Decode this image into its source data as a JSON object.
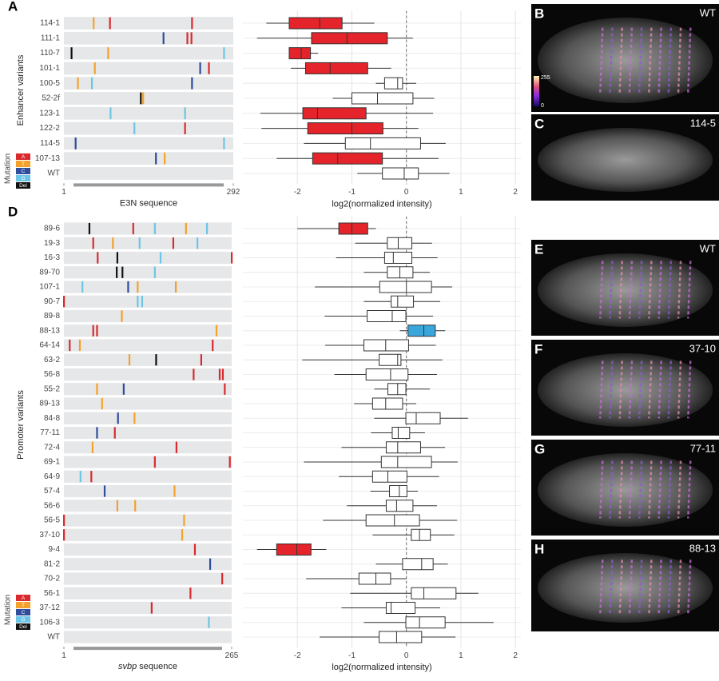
{
  "chart_data": [
    {
      "type": "track",
      "panel": "A",
      "ylabel": "Enhancer variants",
      "xlabel": "E3N sequence",
      "xlim": [
        1,
        292
      ],
      "xticks": [
        1,
        292
      ],
      "categories": [
        "114-1",
        "111-1",
        "110-7",
        "101-1",
        "100-5",
        "52-2f",
        "123-1",
        "122-2",
        "114-5",
        "107-13",
        "WT"
      ],
      "mutations": [
        [
          {
            "pos": 52,
            "base": "T"
          },
          {
            "pos": 80,
            "base": "A"
          },
          {
            "pos": 221,
            "base": "A"
          }
        ],
        [
          {
            "pos": 172,
            "base": "C"
          },
          {
            "pos": 213,
            "base": "A"
          },
          {
            "pos": 220,
            "base": "A"
          }
        ],
        [
          {
            "pos": 14,
            "base": "Del"
          },
          {
            "pos": 77,
            "base": "T"
          },
          {
            "pos": 276,
            "base": "G"
          }
        ],
        [
          {
            "pos": 54,
            "base": "T"
          },
          {
            "pos": 235,
            "base": "C"
          },
          {
            "pos": 250,
            "base": "A"
          }
        ],
        [
          {
            "pos": 25,
            "base": "T"
          },
          {
            "pos": 49,
            "base": "G"
          },
          {
            "pos": 221,
            "base": "C"
          }
        ],
        [
          {
            "pos": 133,
            "base": "Del"
          },
          {
            "pos": 137,
            "base": "T"
          }
        ],
        [
          {
            "pos": 81,
            "base": "G"
          },
          {
            "pos": 209,
            "base": "G"
          }
        ],
        [
          {
            "pos": 122,
            "base": "G"
          },
          {
            "pos": 209,
            "base": "A"
          }
        ],
        [
          {
            "pos": 21,
            "base": "C"
          },
          {
            "pos": 276,
            "base": "G"
          }
        ],
        [
          {
            "pos": 159,
            "base": "C"
          },
          {
            "pos": 174,
            "base": "T"
          }
        ],
        []
      ],
      "legend_title": "Mutation",
      "legend": [
        {
          "name": "A",
          "color": "#d92a2e"
        },
        {
          "name": "T",
          "color": "#f4a12c"
        },
        {
          "name": "C",
          "color": "#2f4d9c"
        },
        {
          "name": "G",
          "color": "#6cc5e4"
        },
        {
          "name": "Del",
          "color": "#111111"
        }
      ]
    },
    {
      "type": "box",
      "xlabel": "log2(normalized intensity)",
      "xlim": [
        -3,
        2.1
      ],
      "xticks": [
        -2,
        -1,
        0,
        1,
        2
      ],
      "refline": 0,
      "low": [
        -2.57,
        -2.74,
        -2.15,
        -2.12,
        -0.56,
        -1.35,
        -2.68,
        -2.66,
        -1.88,
        -2.38,
        -0.9
      ],
      "q1": [
        -2.15,
        -1.74,
        -2.15,
        -1.85,
        -0.4,
        -1.0,
        -1.9,
        -1.81,
        -1.12,
        -1.72,
        -0.44
      ],
      "median": [
        -1.59,
        -1.09,
        -1.93,
        -1.4,
        -0.16,
        -0.53,
        -1.63,
        -1.0,
        -0.66,
        -1.26,
        -0.04
      ],
      "q3": [
        -1.18,
        -0.35,
        -1.76,
        -0.71,
        -0.07,
        0.12,
        -0.74,
        -0.43,
        0.26,
        -0.44,
        0.22
      ],
      "high": [
        -0.59,
        0.12,
        -1.62,
        -0.28,
        0.18,
        0.51,
        0.49,
        0.22,
        0.72,
        0.59,
        0.79
      ],
      "fills": [
        "#e4232a",
        "#e4232a",
        "#e4232a",
        "#e4232a",
        "#ffffff",
        "#ffffff",
        "#e4232a",
        "#e4232a",
        "#ffffff",
        "#e4232a",
        "#ffffff"
      ]
    },
    {
      "type": "track",
      "panel": "D",
      "ylabel": "Promoter variants",
      "xlabel_gene": "svbp",
      "xlabel": "sequence",
      "xlim": [
        1,
        265
      ],
      "xticks": [
        1,
        265
      ],
      "categories": [
        "89-6",
        "19-3",
        "16-3",
        "89-70",
        "107-1",
        "90-7",
        "89-8",
        "88-13",
        "64-14",
        "63-2",
        "56-8",
        "55-2",
        "89-13",
        "84-8",
        "77-11",
        "72-4",
        "69-1",
        "64-9",
        "57-4",
        "56-6",
        "56-5",
        "37-10",
        "9-4",
        "81-2",
        "70-2",
        "56-1",
        "37-12",
        "106-3",
        "WT"
      ],
      "mutations": [
        [
          {
            "pos": 41,
            "base": "Del"
          },
          {
            "pos": 110,
            "base": "A"
          },
          {
            "pos": 144,
            "base": "G"
          },
          {
            "pos": 193,
            "base": "T"
          },
          {
            "pos": 226,
            "base": "G"
          }
        ],
        [
          {
            "pos": 47,
            "base": "A"
          },
          {
            "pos": 78,
            "base": "T"
          },
          {
            "pos": 120,
            "base": "G"
          },
          {
            "pos": 173,
            "base": "A"
          },
          {
            "pos": 211,
            "base": "G"
          }
        ],
        [
          {
            "pos": 54,
            "base": "A"
          },
          {
            "pos": 85,
            "base": "Del"
          },
          {
            "pos": 153,
            "base": "G"
          },
          {
            "pos": 265,
            "base": "A"
          }
        ],
        [
          {
            "pos": 84,
            "base": "Del"
          },
          {
            "pos": 93,
            "base": "Del"
          },
          {
            "pos": 144,
            "base": "G"
          }
        ],
        [
          {
            "pos": 30,
            "base": "G"
          },
          {
            "pos": 102,
            "base": "C"
          },
          {
            "pos": 117,
            "base": "T"
          },
          {
            "pos": 177,
            "base": "T"
          }
        ],
        [
          {
            "pos": 1,
            "base": "A"
          },
          {
            "pos": 117,
            "base": "G"
          },
          {
            "pos": 124,
            "base": "G"
          }
        ],
        [
          {
            "pos": 92,
            "base": "T"
          }
        ],
        [
          {
            "pos": 47,
            "base": "A"
          },
          {
            "pos": 53,
            "base": "A"
          },
          {
            "pos": 241,
            "base": "T"
          }
        ],
        [
          {
            "pos": 10,
            "base": "A"
          },
          {
            "pos": 26,
            "base": "T"
          },
          {
            "pos": 235,
            "base": "A"
          }
        ],
        [
          {
            "pos": 104,
            "base": "T"
          },
          {
            "pos": 146,
            "base": "Del"
          },
          {
            "pos": 217,
            "base": "A"
          }
        ],
        [
          {
            "pos": 205,
            "base": "A"
          },
          {
            "pos": 246,
            "base": "A"
          },
          {
            "pos": 251,
            "base": "A"
          }
        ],
        [
          {
            "pos": 53,
            "base": "T"
          },
          {
            "pos": 95,
            "base": "C"
          },
          {
            "pos": 254,
            "base": "A"
          }
        ],
        [
          {
            "pos": 61,
            "base": "T"
          }
        ],
        [
          {
            "pos": 86,
            "base": "C"
          },
          {
            "pos": 112,
            "base": "T"
          }
        ],
        [
          {
            "pos": 53,
            "base": "C"
          },
          {
            "pos": 81,
            "base": "A"
          }
        ],
        [
          {
            "pos": 46,
            "base": "T"
          },
          {
            "pos": 178,
            "base": "A"
          }
        ],
        [
          {
            "pos": 144,
            "base": "A"
          },
          {
            "pos": 262,
            "base": "A"
          }
        ],
        [
          {
            "pos": 27,
            "base": "G"
          },
          {
            "pos": 44,
            "base": "A"
          }
        ],
        [
          {
            "pos": 65,
            "base": "C"
          },
          {
            "pos": 175,
            "base": "T"
          }
        ],
        [
          {
            "pos": 85,
            "base": "T"
          },
          {
            "pos": 113,
            "base": "T"
          }
        ],
        [
          {
            "pos": 1,
            "base": "A"
          },
          {
            "pos": 190,
            "base": "T"
          }
        ],
        [
          {
            "pos": 1,
            "base": "A"
          },
          {
            "pos": 187,
            "base": "T"
          }
        ],
        [
          {
            "pos": 207,
            "base": "A"
          }
        ],
        [
          {
            "pos": 231,
            "base": "C"
          }
        ],
        [
          {
            "pos": 250,
            "base": "A"
          }
        ],
        [
          {
            "pos": 200,
            "base": "A"
          }
        ],
        [
          {
            "pos": 139,
            "base": "A"
          }
        ],
        [
          {
            "pos": 229,
            "base": "G"
          }
        ],
        []
      ],
      "legend_title": "Mutation",
      "legend": [
        {
          "name": "A",
          "color": "#d92a2e"
        },
        {
          "name": "T",
          "color": "#f4a12c"
        },
        {
          "name": "C",
          "color": "#2f4d9c"
        },
        {
          "name": "G",
          "color": "#6cc5e4"
        },
        {
          "name": "Del",
          "color": "#111111"
        }
      ]
    },
    {
      "type": "box",
      "xlabel": "log2(normalized intensity)",
      "xlim": [
        -3,
        2.1
      ],
      "xticks": [
        -2,
        -1,
        0,
        1,
        2
      ],
      "refline": 0,
      "low": [
        -2.0,
        -0.94,
        -1.29,
        -0.78,
        -1.68,
        -0.78,
        -1.5,
        -0.12,
        -1.49,
        -1.91,
        -1.32,
        -0.59,
        -0.96,
        -0.59,
        -0.65,
        -1.19,
        -1.88,
        -1.24,
        -0.66,
        -1.09,
        -1.53,
        -0.62,
        -2.74,
        -0.56,
        -1.84,
        -1.03,
        -1.19,
        -0.78,
        -1.59
      ],
      "q1": [
        -1.24,
        -0.35,
        -0.4,
        -0.35,
        -0.49,
        -0.28,
        -0.72,
        0.03,
        -0.78,
        -0.5,
        -0.74,
        -0.34,
        -0.62,
        -0.01,
        -0.26,
        -0.37,
        -0.46,
        -0.62,
        -0.31,
        -0.37,
        -0.74,
        0.09,
        -2.38,
        -0.07,
        -0.87,
        0.09,
        -0.37,
        -0.01,
        -0.5
      ],
      "median": [
        -1.0,
        -0.15,
        -0.24,
        -0.12,
        0.0,
        -0.16,
        -0.26,
        0.32,
        -0.38,
        -0.16,
        -0.29,
        -0.16,
        -0.38,
        0.18,
        -0.15,
        -0.16,
        -0.16,
        -0.34,
        -0.13,
        -0.18,
        -0.22,
        0.24,
        -2.01,
        0.28,
        -0.56,
        0.32,
        -0.28,
        0.24,
        -0.18
      ],
      "q3": [
        -0.71,
        0.1,
        0.1,
        0.12,
        0.46,
        0.13,
        -0.01,
        0.53,
        0.04,
        -0.1,
        0.03,
        -0.01,
        -0.07,
        0.62,
        0.06,
        0.26,
        0.46,
        0.01,
        0.01,
        0.12,
        0.24,
        0.44,
        -1.75,
        0.49,
        -0.29,
        0.91,
        0.16,
        0.71,
        0.28
      ],
      "high": [
        -0.56,
        0.47,
        0.57,
        0.43,
        0.84,
        0.62,
        0.49,
        0.71,
        0.54,
        0.66,
        0.56,
        0.43,
        0.18,
        1.13,
        0.34,
        0.71,
        0.94,
        0.6,
        0.21,
        0.56,
        0.93,
        0.88,
        -1.47,
        0.76,
        0.0,
        1.32,
        0.62,
        1.6,
        0.9
      ],
      "fills": [
        "#e4232a",
        "#ffffff",
        "#ffffff",
        "#ffffff",
        "#ffffff",
        "#ffffff",
        "#ffffff",
        "#3aa7dc",
        "#ffffff",
        "#ffffff",
        "#ffffff",
        "#ffffff",
        "#ffffff",
        "#ffffff",
        "#ffffff",
        "#ffffff",
        "#ffffff",
        "#ffffff",
        "#ffffff",
        "#ffffff",
        "#ffffff",
        "#ffffff",
        "#e4232a",
        "#ffffff",
        "#ffffff",
        "#ffffff",
        "#ffffff",
        "#ffffff",
        "#ffffff"
      ]
    }
  ],
  "images": [
    {
      "letter": "B",
      "label": "WT",
      "colorbar": {
        "max": 255,
        "min": 0
      }
    },
    {
      "letter": "C",
      "label": "114-5"
    },
    {
      "letter": "E",
      "label": "WT"
    },
    {
      "letter": "F",
      "label": "37-10"
    },
    {
      "letter": "G",
      "label": "77-11"
    },
    {
      "letter": "H",
      "label": "88-13"
    }
  ]
}
